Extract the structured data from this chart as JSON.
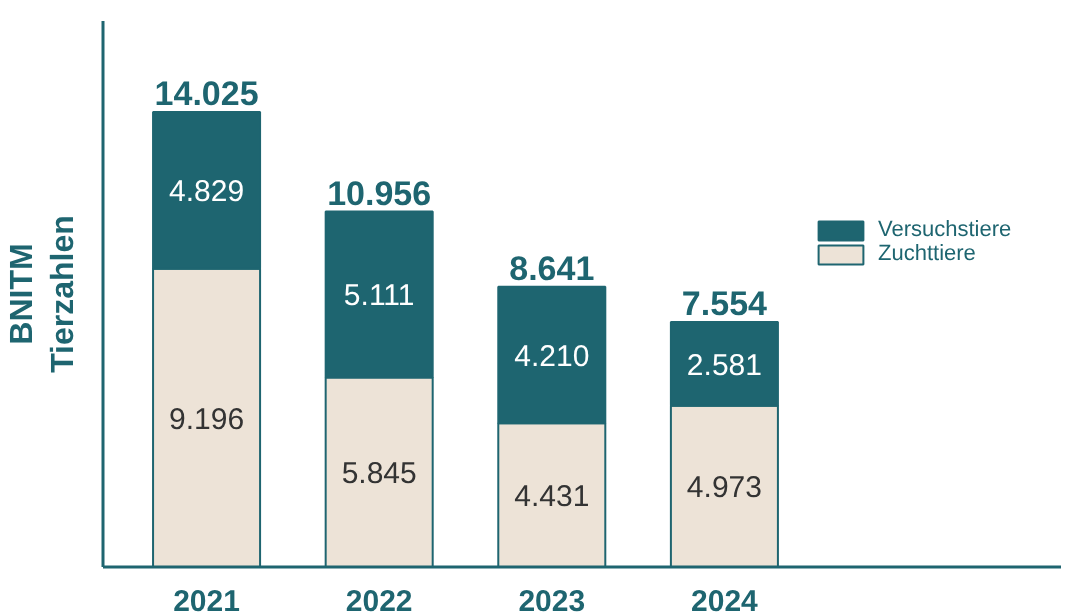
{
  "chart_data": {
    "type": "bar",
    "stacked": true,
    "ylabel": "BNITM\nTierzahlen",
    "categories": [
      "2021",
      "2022",
      "2023",
      "2024"
    ],
    "series": [
      {
        "name": "Zuchttiere",
        "color": "#ede3d7",
        "values": [
          9196,
          5845,
          4431,
          4973
        ],
        "value_labels": [
          "9.196",
          "5.845",
          "4.431",
          "4.973"
        ]
      },
      {
        "name": "Versuchstiere",
        "color": "#1e6570",
        "values": [
          4829,
          5111,
          4210,
          2581
        ],
        "value_labels": [
          "4.829",
          "5.111",
          "4.210",
          "2.581"
        ]
      }
    ],
    "totals": [
      "14.025",
      "10.956",
      "8.641",
      "7.554"
    ],
    "legend": "right"
  }
}
